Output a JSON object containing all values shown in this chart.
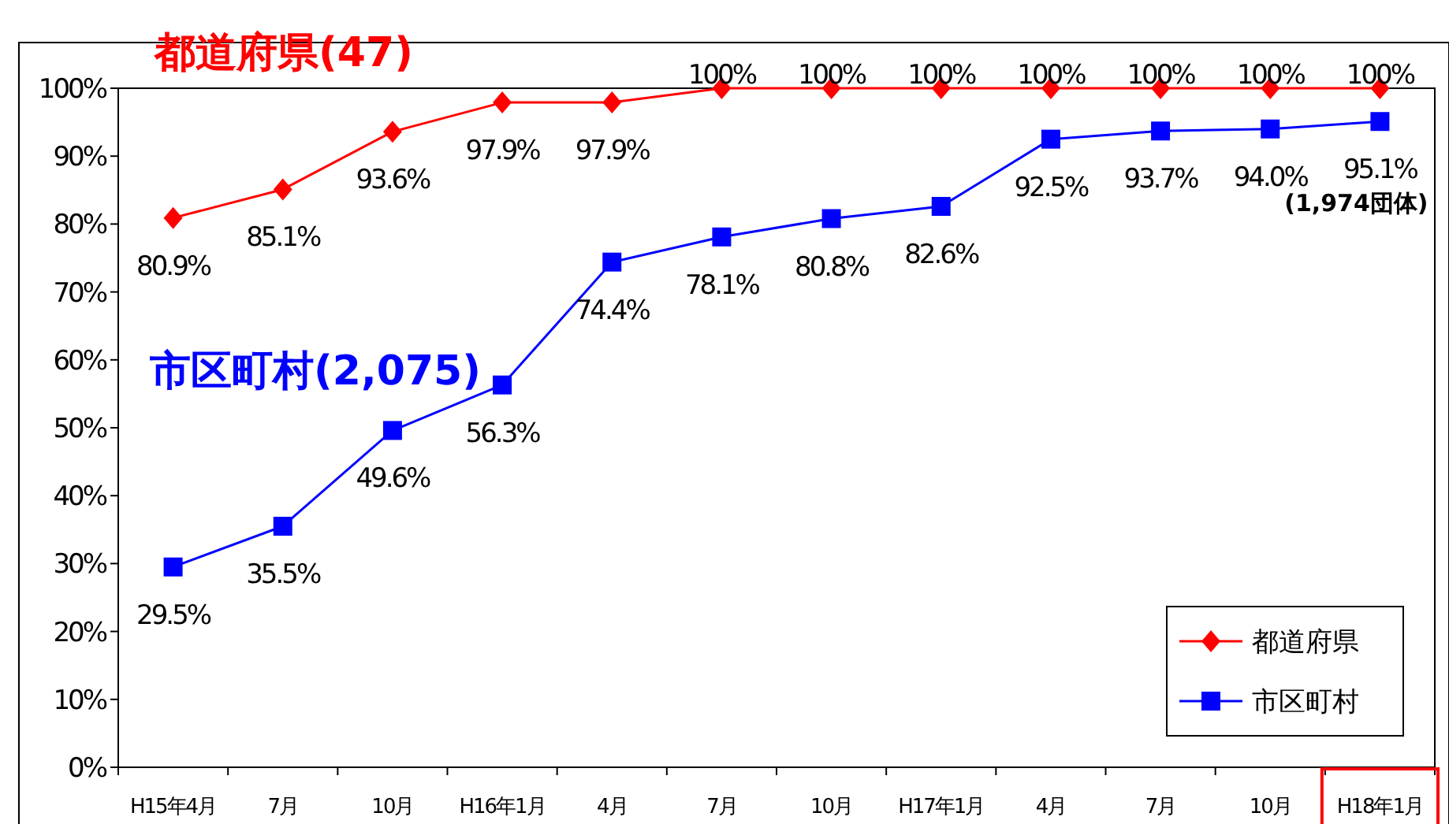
{
  "chart_data": {
    "type": "line",
    "categories": [
      "H15年4月",
      "7月",
      "10月",
      "H16年1月",
      "4月",
      "7月",
      "10月",
      "H17年1月",
      "4月",
      "7月",
      "10月",
      "H18年1月"
    ],
    "series": [
      {
        "name": "都道府県",
        "color": "#ff0000",
        "marker": "diamond",
        "values": [
          80.9,
          85.1,
          93.6,
          97.9,
          97.9,
          100,
          100,
          100,
          100,
          100,
          100,
          100
        ],
        "value_labels": [
          "80.9%",
          "85.1%",
          "93.6%",
          "97.9%",
          "97.9%",
          "100%",
          "100%",
          "100%",
          "100%",
          "100%",
          "100%",
          "100%"
        ]
      },
      {
        "name": "市区町村",
        "color": "#0000ff",
        "marker": "square",
        "values": [
          29.5,
          35.5,
          49.6,
          56.3,
          74.4,
          78.1,
          80.8,
          82.6,
          92.5,
          93.7,
          94.0,
          95.1
        ],
        "value_labels": [
          "29.5%",
          "35.5%",
          "49.6%",
          "56.3%",
          "74.4%",
          "78.1%",
          "80.8%",
          "82.6%",
          "92.5%",
          "93.7%",
          "94.0%",
          "95.1%"
        ]
      }
    ],
    "ylim": [
      0,
      100
    ],
    "yticks": [
      {
        "value": 0,
        "label": "0%"
      },
      {
        "value": 10,
        "label": "10%"
      },
      {
        "value": 20,
        "label": "20%"
      },
      {
        "value": 30,
        "label": "30%"
      },
      {
        "value": 40,
        "label": "40%"
      },
      {
        "value": 50,
        "label": "50%"
      },
      {
        "value": 60,
        "label": "60%"
      },
      {
        "value": 70,
        "label": "70%"
      },
      {
        "value": 80,
        "label": "80%"
      },
      {
        "value": 90,
        "label": "90%"
      },
      {
        "value": 100,
        "label": "100%"
      }
    ],
    "annotations": [
      "都道府県(47)",
      "市区町村(2,075)",
      {
        "text": "(1,974団体)",
        "x": "H18年1月",
        "y": 95.1
      }
    ],
    "legend": "bottom right",
    "grid": false
  }
}
